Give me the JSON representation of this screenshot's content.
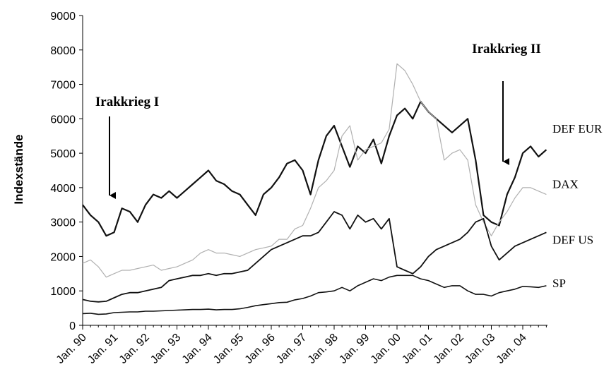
{
  "chart_data": {
    "type": "line",
    "y_label": "Indexstände",
    "categories": [
      "Jan. 90",
      null,
      null,
      null,
      "Jan. 91",
      null,
      null,
      null,
      "Jan. 92",
      null,
      null,
      null,
      "Jan. 93",
      null,
      null,
      null,
      "Jan. 94",
      null,
      null,
      null,
      "Jan. 95",
      null,
      null,
      null,
      "Jan. 96",
      null,
      null,
      null,
      "Jan. 97",
      null,
      null,
      null,
      "Jan. 98",
      null,
      null,
      null,
      "Jan. 99",
      null,
      null,
      null,
      "Jan. 00",
      null,
      null,
      null,
      "Jan. 01",
      null,
      null,
      null,
      "Jan. 02",
      null,
      null,
      null,
      "Jan. 03",
      null,
      null,
      null,
      "Jan. 04",
      null,
      null,
      null
    ],
    "series": [
      {
        "name": "DEF EUR",
        "color": "#111111",
        "width": 2.2,
        "values": [
          3500,
          3200,
          3000,
          2600,
          2700,
          3400,
          3300,
          3000,
          3500,
          3800,
          3700,
          3900,
          3700,
          3900,
          4100,
          4300,
          4500,
          4200,
          4100,
          3900,
          3800,
          3500,
          3200,
          3800,
          4000,
          4300,
          4700,
          4800,
          4500,
          3800,
          4800,
          5500,
          5800,
          5200,
          4600,
          5200,
          5000,
          5400,
          4700,
          5500,
          6100,
          6300,
          6000,
          6500,
          6200,
          6000,
          5800,
          5600,
          5800,
          6000,
          4800,
          3200,
          3000,
          2900,
          3800,
          4300,
          5000,
          5200,
          4900,
          5100
        ]
      },
      {
        "name": "DAX",
        "color": "#b0b0b0",
        "width": 1.2,
        "values": [
          1800,
          1900,
          1700,
          1400,
          1500,
          1600,
          1600,
          1650,
          1700,
          1750,
          1600,
          1650,
          1700,
          1800,
          1900,
          2100,
          2200,
          2100,
          2100,
          2050,
          2000,
          2100,
          2200,
          2250,
          2300,
          2500,
          2500,
          2800,
          2900,
          3400,
          4000,
          4200,
          4500,
          5500,
          5800,
          4800,
          5100,
          5200,
          5300,
          5700,
          7600,
          7400,
          7000,
          6500,
          6200,
          6000,
          4800,
          5000,
          5100,
          4800,
          3500,
          3000,
          2600,
          3000,
          3300,
          3700,
          4000,
          4000,
          3900,
          3800
        ]
      },
      {
        "name": "DEF US",
        "color": "#111111",
        "width": 1.8,
        "values": [
          750,
          700,
          680,
          700,
          800,
          900,
          950,
          950,
          1000,
          1050,
          1100,
          1300,
          1350,
          1400,
          1450,
          1450,
          1500,
          1450,
          1500,
          1500,
          1550,
          1600,
          1800,
          2000,
          2200,
          2300,
          2400,
          2500,
          2600,
          2600,
          2700,
          3000,
          3300,
          3200,
          2800,
          3200,
          3000,
          3100,
          2800,
          3100,
          1700,
          1600,
          1500,
          1700,
          2000,
          2200,
          2300,
          2400,
          2500,
          2700,
          3000,
          3100,
          2300,
          1900,
          2100,
          2300,
          2400,
          2500,
          2600,
          2700
        ]
      },
      {
        "name": "SP",
        "color": "#111111",
        "width": 1.6,
        "values": [
          340,
          350,
          320,
          330,
          370,
          380,
          390,
          390,
          410,
          410,
          420,
          430,
          440,
          450,
          460,
          460,
          470,
          450,
          460,
          460,
          480,
          520,
          570,
          600,
          630,
          660,
          670,
          740,
          780,
          850,
          950,
          970,
          1000,
          1100,
          1000,
          1150,
          1250,
          1350,
          1300,
          1400,
          1450,
          1450,
          1450,
          1350,
          1300,
          1200,
          1100,
          1150,
          1150,
          1000,
          900,
          900,
          850,
          950,
          1000,
          1050,
          1130,
          1120,
          1100,
          1150
        ]
      }
    ],
    "annotations": [
      "Irakkrieg I",
      "Irakkrieg II"
    ],
    "ylim": [
      0,
      9000
    ],
    "yticks": [
      0,
      1000,
      2000,
      3000,
      4000,
      5000,
      6000,
      7000,
      8000,
      9000
    ],
    "grid": false
  }
}
